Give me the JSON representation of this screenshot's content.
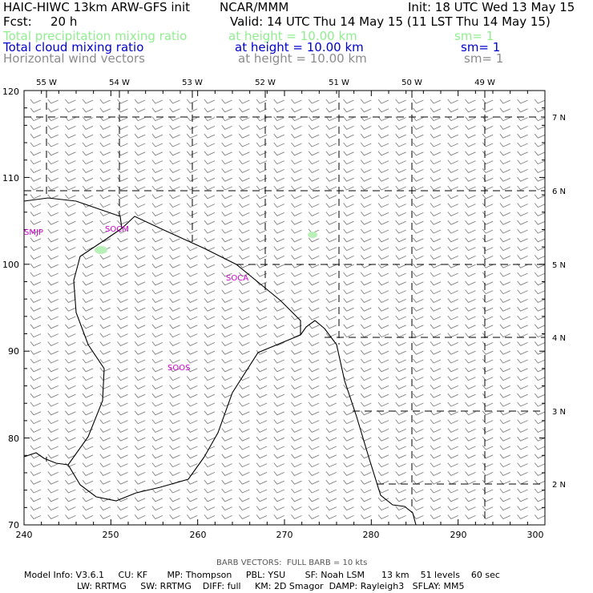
{
  "header": {
    "model": "HAIC-HIWC 13km ARW-GFS init",
    "org": "NCAR/MMM",
    "init": "Init: 18 UTC Wed 13 May 15",
    "fcst_label": "Fcst:",
    "fcst_value": "20 h",
    "valid": "Valid: 14 UTC Thu 14 May 15 (11 LST Thu 14 May 15)"
  },
  "fields": [
    {
      "name": "Total precipitation mixing ratio",
      "height": "at height = 10.00 km",
      "sm": "sm= 1",
      "color": "#90ee90"
    },
    {
      "name": "Total cloud mixing ratio",
      "height": "at height = 10.00 km",
      "sm": "sm= 1",
      "color": "#0000cd"
    },
    {
      "name": "Horizontal wind vectors",
      "height": "at height = 10.00 km",
      "sm": "sm= 1",
      "color": "#8c8c8c"
    }
  ],
  "map": {
    "x_ticks": [
      "240",
      "250",
      "260",
      "270",
      "280",
      "290",
      "300"
    ],
    "y_ticks": [
      "70",
      "80",
      "90",
      "100",
      "110",
      "120"
    ],
    "lon_labels": [
      "55 W",
      "54 W",
      "53 W",
      "52 W",
      "51 W",
      "50 W",
      "49 W"
    ],
    "lat_labels": [
      "7 N",
      "6 N",
      "5 N",
      "4 N",
      "3 N",
      "2 N"
    ],
    "stations": [
      "SMJP",
      "SOCM",
      "SOCA",
      "SOOS"
    ],
    "station_color": "#cc00cc",
    "coast_color": "#000000",
    "barb_color": "#808080"
  },
  "footer": {
    "barb_note": "BARB VECTORS:  FULL BARB = 10 kts",
    "line1": "Model Info: V3.6.1     CU: KF       MP: Thompson     PBL: YSU       SF: Noah LSM      13 km    51 levels    60 sec",
    "line2": "LW: RRTMG     SW: RRTMG    DIFF: full     KM: 2D Smagor  DAMP: Rayleigh3   SFLAY: MM5"
  }
}
